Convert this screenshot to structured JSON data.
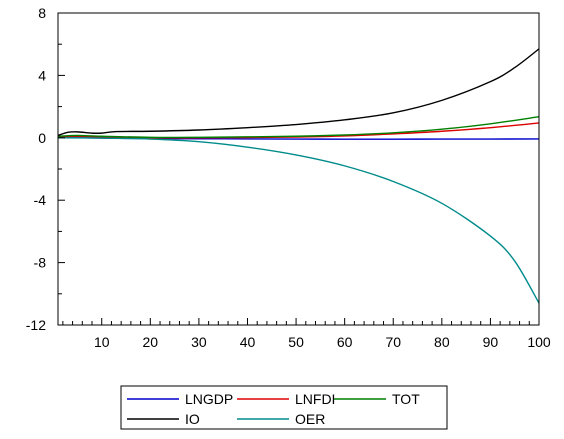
{
  "chart_data": {
    "type": "line",
    "title": "",
    "xlabel": "",
    "ylabel": "",
    "xlim": [
      1,
      100
    ],
    "ylim": [
      -12,
      8
    ],
    "x_ticks": [
      10,
      20,
      30,
      40,
      50,
      60,
      70,
      80,
      90,
      100
    ],
    "y_ticks": [
      8,
      4,
      0,
      -4,
      -8,
      -12
    ],
    "x_tick_labels": [
      "10",
      "20",
      "30",
      "40",
      "50",
      "60",
      "70",
      "80",
      "90",
      "100"
    ],
    "y_tick_labels": [
      "8",
      "4",
      "0",
      "-4",
      "-8",
      "-12"
    ],
    "grid": false,
    "legend_position": "bottom",
    "series": [
      {
        "name": "LNGDP",
        "color": "#0000cc",
        "points": [
          [
            1,
            0.0
          ],
          [
            5,
            0.0
          ],
          [
            10,
            -0.02
          ],
          [
            20,
            -0.05
          ],
          [
            30,
            -0.06
          ],
          [
            40,
            -0.07
          ],
          [
            50,
            -0.08
          ],
          [
            60,
            -0.09
          ],
          [
            70,
            -0.09
          ],
          [
            80,
            -0.08
          ],
          [
            90,
            -0.08
          ],
          [
            100,
            -0.07
          ]
        ]
      },
      {
        "name": "LNFDI",
        "color": "#dd0000",
        "points": [
          [
            1,
            0.05
          ],
          [
            5,
            0.1
          ],
          [
            10,
            0.05
          ],
          [
            20,
            0.0
          ],
          [
            30,
            0.0
          ],
          [
            40,
            0.02
          ],
          [
            50,
            0.05
          ],
          [
            60,
            0.12
          ],
          [
            70,
            0.25
          ],
          [
            80,
            0.42
          ],
          [
            90,
            0.65
          ],
          [
            100,
            0.95
          ]
        ]
      },
      {
        "name": "TOT",
        "color": "#008000",
        "points": [
          [
            1,
            0.1
          ],
          [
            5,
            0.15
          ],
          [
            10,
            0.1
          ],
          [
            20,
            0.03
          ],
          [
            30,
            0.03
          ],
          [
            40,
            0.06
          ],
          [
            50,
            0.1
          ],
          [
            60,
            0.18
          ],
          [
            70,
            0.32
          ],
          [
            80,
            0.55
          ],
          [
            90,
            0.9
          ],
          [
            100,
            1.35
          ]
        ]
      },
      {
        "name": "IO",
        "color": "#000000",
        "points": [
          [
            1,
            0.15
          ],
          [
            3,
            0.35
          ],
          [
            5,
            0.38
          ],
          [
            8,
            0.3
          ],
          [
            10,
            0.3
          ],
          [
            13,
            0.4
          ],
          [
            20,
            0.42
          ],
          [
            30,
            0.5
          ],
          [
            40,
            0.65
          ],
          [
            50,
            0.85
          ],
          [
            60,
            1.15
          ],
          [
            70,
            1.6
          ],
          [
            80,
            2.4
          ],
          [
            90,
            3.6
          ],
          [
            95,
            4.5
          ],
          [
            100,
            5.7
          ]
        ]
      },
      {
        "name": "OER",
        "color": "#008b8b",
        "points": [
          [
            1,
            0.0
          ],
          [
            10,
            -0.02
          ],
          [
            20,
            -0.08
          ],
          [
            30,
            -0.25
          ],
          [
            40,
            -0.6
          ],
          [
            50,
            -1.1
          ],
          [
            60,
            -1.8
          ],
          [
            70,
            -2.8
          ],
          [
            80,
            -4.2
          ],
          [
            90,
            -6.3
          ],
          [
            95,
            -7.9
          ],
          [
            100,
            -10.6
          ]
        ]
      }
    ]
  }
}
